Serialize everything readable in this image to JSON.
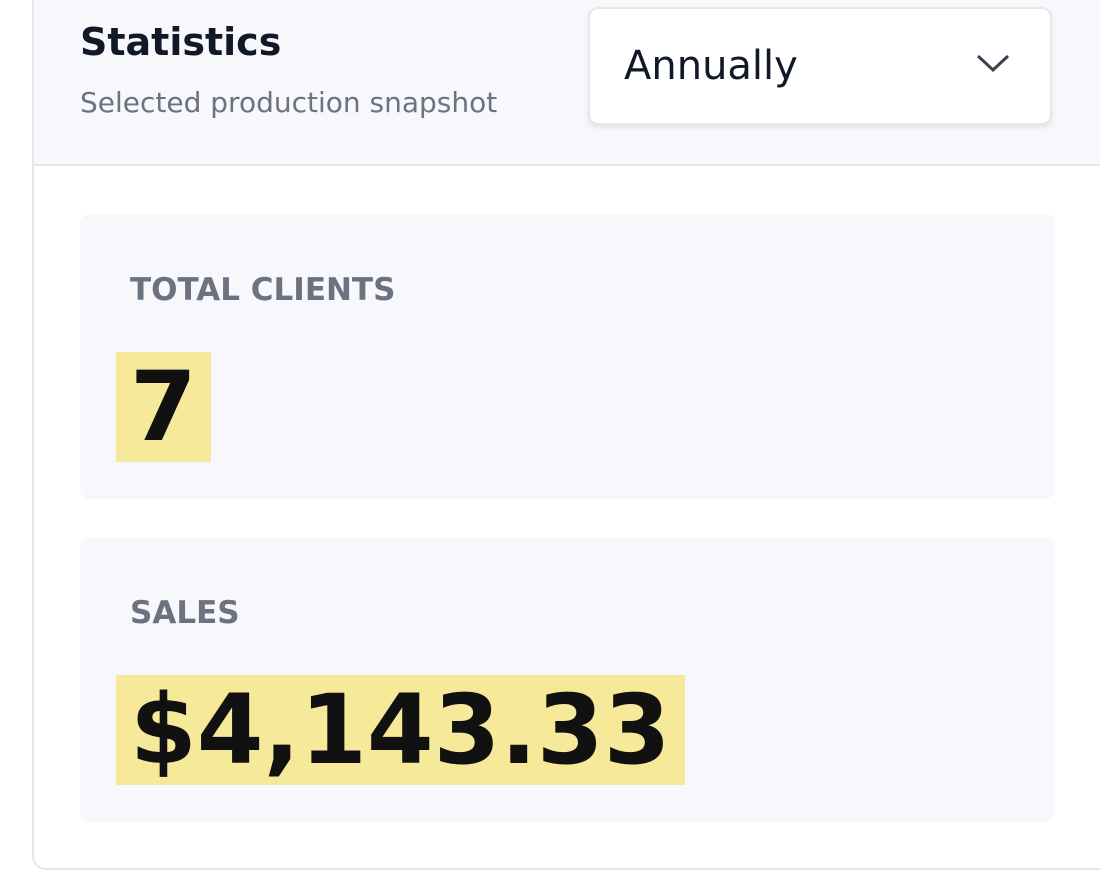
{
  "header": {
    "title": "Statistics",
    "subtitle": "Selected production snapshot"
  },
  "dropdown": {
    "selected": "Annually"
  },
  "stats": [
    {
      "label": "TOTAL CLIENTS",
      "value": "7"
    },
    {
      "label": "SALES",
      "value": "$4,143.33"
    }
  ]
}
